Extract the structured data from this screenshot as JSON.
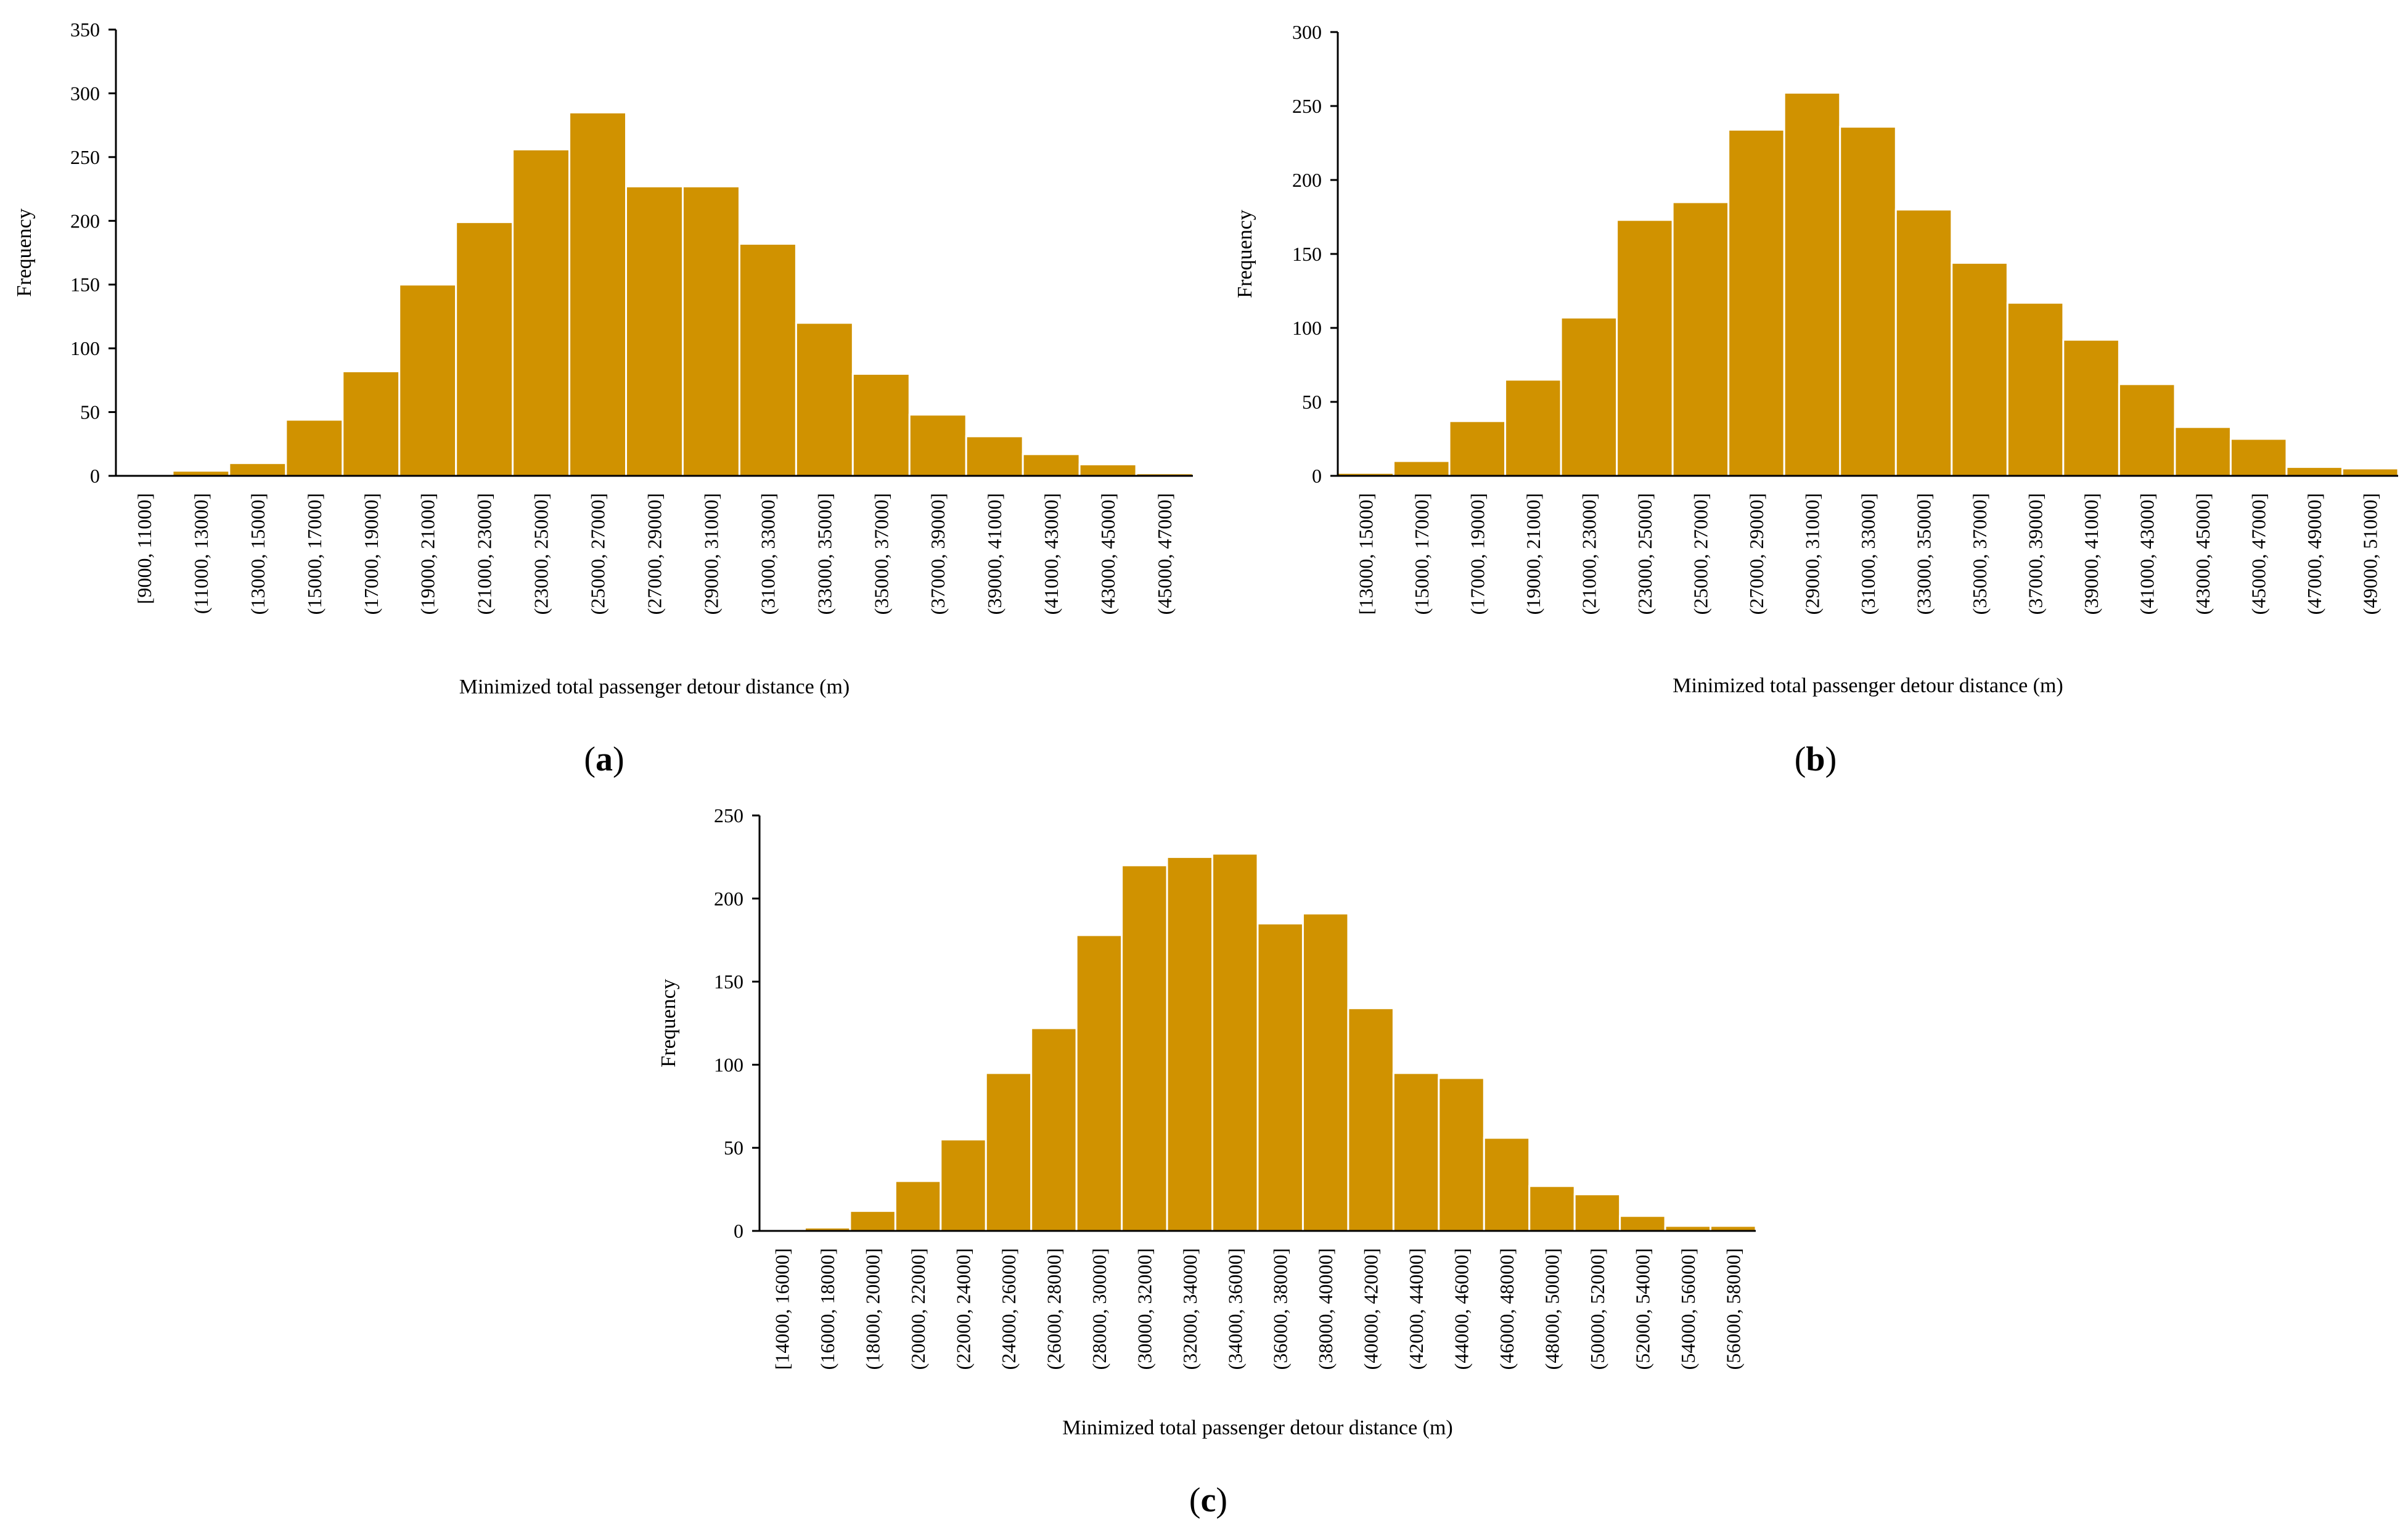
{
  "figure": {
    "bar_color": "#D09200"
  },
  "chart_data": [
    {
      "type": "bar",
      "panel_label": "a",
      "title": "",
      "xlabel": "Minimized total passenger detour distance (m)",
      "ylabel": "Frequency",
      "ylim": [
        0,
        350
      ],
      "yticks": [
        0,
        50,
        100,
        150,
        200,
        250,
        300,
        350
      ],
      "grid": false,
      "categories": [
        "[9000, 11000]",
        "(11000, 13000]",
        "(13000, 15000]",
        "(15000, 17000]",
        "(17000, 19000]",
        "(19000, 21000]",
        "(21000, 23000]",
        "(23000, 25000]",
        "(25000, 27000]",
        "(27000, 29000]",
        "(29000, 31000]",
        "(31000, 33000]",
        "(33000, 35000]",
        "(35000, 37000]",
        "(37000, 39000]",
        "(39000, 41000]",
        "(41000, 43000]",
        "(43000, 45000]",
        "(45000, 47000]"
      ],
      "values": [
        0,
        4,
        10,
        44,
        82,
        150,
        199,
        256,
        285,
        227,
        227,
        182,
        120,
        80,
        48,
        31,
        17,
        9,
        2
      ]
    },
    {
      "type": "bar",
      "panel_label": "b",
      "title": "",
      "xlabel": "Minimized total passenger detour distance (m)",
      "ylabel": "Frequency",
      "ylim": [
        0,
        300
      ],
      "yticks": [
        0,
        50,
        100,
        150,
        200,
        250,
        300
      ],
      "grid": false,
      "categories": [
        "[13000, 15000]",
        "(15000, 17000]",
        "(17000, 19000]",
        "(19000, 21000]",
        "(21000, 23000]",
        "(23000, 25000]",
        "(25000, 27000]",
        "(27000, 29000]",
        "(29000, 31000]",
        "(31000, 33000]",
        "(33000, 35000]",
        "(35000, 37000]",
        "(37000, 39000]",
        "(39000, 41000]",
        "(41000, 43000]",
        "(43000, 45000]",
        "(45000, 47000]",
        "(47000, 49000]",
        "(49000, 51000]"
      ],
      "values": [
        2,
        10,
        37,
        65,
        107,
        173,
        185,
        234,
        259,
        236,
        180,
        144,
        117,
        92,
        62,
        33,
        25,
        6,
        5
      ]
    },
    {
      "type": "bar",
      "panel_label": "c",
      "title": "",
      "xlabel": "Minimized total passenger detour distance (m)",
      "ylabel": "Frequency",
      "ylim": [
        0,
        250
      ],
      "yticks": [
        0,
        50,
        100,
        150,
        200,
        250
      ],
      "grid": false,
      "categories": [
        "[14000, 16000]",
        "(16000, 18000]",
        "(18000, 20000]",
        "(20000, 22000]",
        "(22000, 24000]",
        "(24000, 26000]",
        "(26000, 28000]",
        "(28000, 30000]",
        "(30000, 32000]",
        "(32000, 34000]",
        "(34000, 36000]",
        "(36000, 38000]",
        "(38000, 40000]",
        "(40000, 42000]",
        "(42000, 44000]",
        "(44000, 46000]",
        "(46000, 48000]",
        "(48000, 50000]",
        "(50000, 52000]",
        "(52000, 54000]",
        "(54000, 56000]",
        "(56000, 58000]"
      ],
      "values": [
        1,
        2,
        12,
        30,
        55,
        95,
        122,
        178,
        220,
        225,
        227,
        185,
        191,
        134,
        95,
        92,
        56,
        27,
        22,
        9,
        3,
        3
      ]
    }
  ]
}
